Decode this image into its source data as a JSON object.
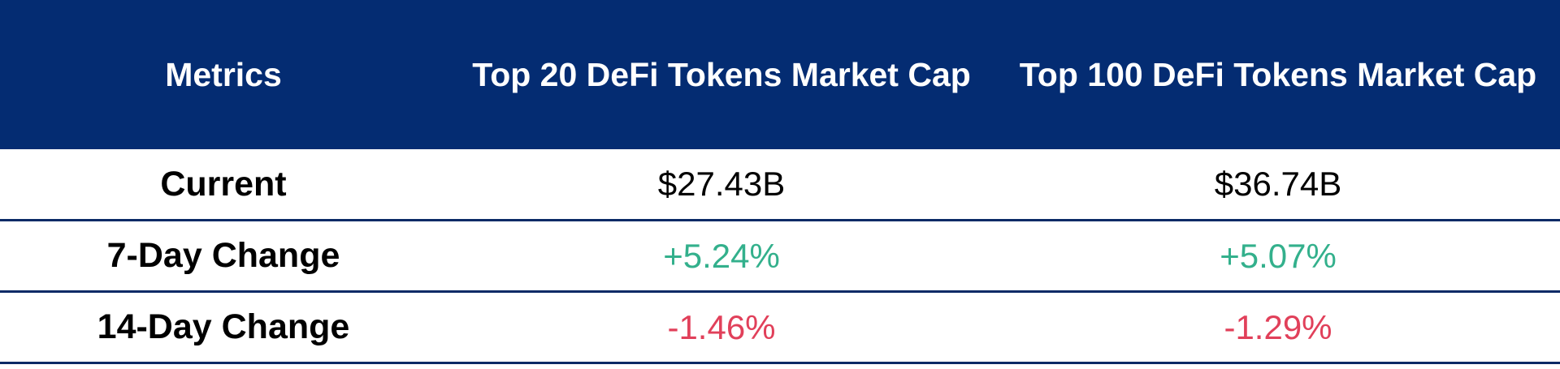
{
  "table": {
    "headers": [
      "Metrics",
      "Top 20 DeFi Tokens Market Cap",
      "Top 100 DeFi Tokens Market Cap"
    ],
    "rows": [
      {
        "metric": "Current",
        "top20": "$27.43B",
        "top100": "$36.74B"
      },
      {
        "metric": "7-Day Change",
        "top20": "+5.24%",
        "top100": "+5.07%"
      },
      {
        "metric": "14-Day Change",
        "top20": "-1.46%",
        "top100": "-1.29%"
      }
    ]
  },
  "colors": {
    "header_bg": "#042c72",
    "positive": "#33b08c",
    "negative": "#e1405a",
    "divider": "#0b2a66"
  }
}
